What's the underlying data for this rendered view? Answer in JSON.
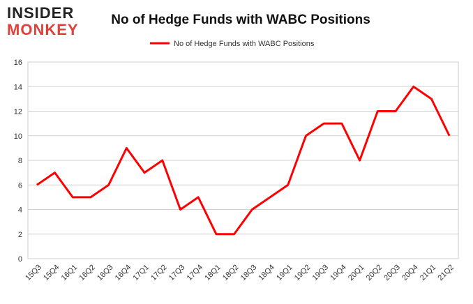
{
  "logo": [
    "INSIDER",
    "MONKEY"
  ],
  "chart_data": {
    "type": "line",
    "title": "No of Hedge Funds with WABC Positions",
    "categories": [
      "15Q3",
      "15Q4",
      "16Q1",
      "16Q2",
      "16Q3",
      "16Q4",
      "17Q1",
      "17Q2",
      "17Q3",
      "17Q4",
      "18Q1",
      "18Q2",
      "18Q3",
      "18Q4",
      "19Q1",
      "19Q2",
      "19Q3",
      "19Q4",
      "20Q1",
      "20Q2",
      "20Q3",
      "20Q4",
      "21Q1",
      "21Q2"
    ],
    "series": [
      {
        "name": "No of Hedge Funds with WABC Positions",
        "color": "#ff0000",
        "values": [
          6,
          7,
          5,
          5,
          6,
          9,
          7,
          8,
          4,
          5,
          2,
          2,
          4,
          5,
          6,
          10,
          11,
          11,
          8,
          12,
          12,
          14,
          13,
          10
        ]
      }
    ],
    "ylim": [
      0,
      16
    ],
    "yticks": [
      0,
      2,
      4,
      6,
      8,
      10,
      12,
      14,
      16
    ],
    "grid": true,
    "legend": "top"
  }
}
